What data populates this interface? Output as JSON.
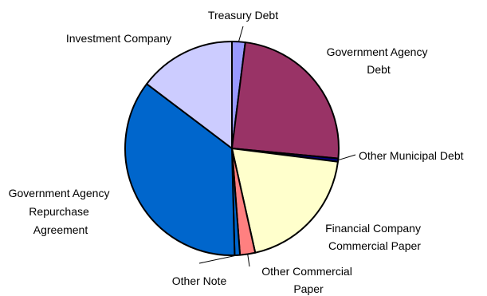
{
  "chart_data": {
    "type": "pie",
    "slices": [
      {
        "label": "Treasury Debt",
        "value": 2.0,
        "color": "#9999FF"
      },
      {
        "label": "Government Agency Debt",
        "value": 24.5,
        "color": "#993366"
      },
      {
        "label": "Other Municipal Debt",
        "value": 0.5,
        "color": "#000080"
      },
      {
        "label": "Financial Company Commercial Paper",
        "value": 19.5,
        "color": "#FFFFCC"
      },
      {
        "label": "Other Commercial Paper",
        "value": 2.3,
        "color": "#FF8080"
      },
      {
        "label": "Other Note",
        "value": 0.8,
        "color": "#0066CC"
      },
      {
        "label": "Government Agency Repurchase Agreement",
        "value": 35.7,
        "color": "#0066CC"
      },
      {
        "label": "Investment Company",
        "value": 14.7,
        "color": "#CCCCFF"
      }
    ],
    "title": "",
    "legend": "none"
  }
}
